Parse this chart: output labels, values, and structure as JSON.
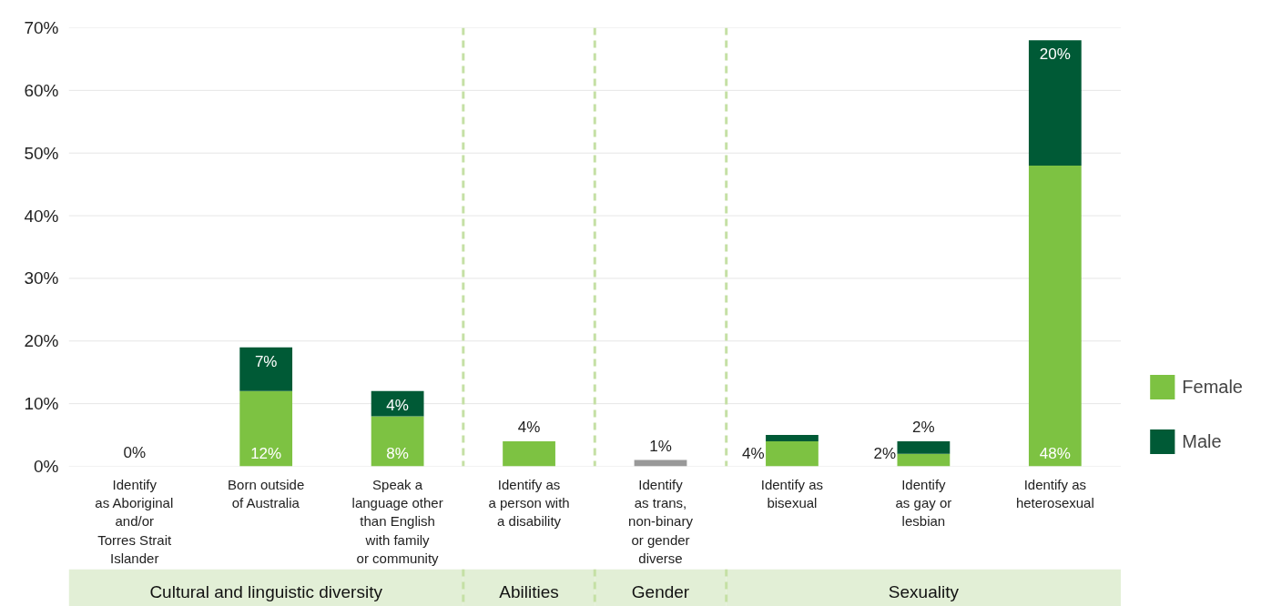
{
  "chart_data": {
    "type": "bar",
    "stacked": true,
    "categories": [
      "Identify\nas Aboriginal\nand/or\nTorres Strait\nIslander",
      "Born outside\nof Australia",
      "Speak a\nlanguage other\nthan English\nwith family\nor community",
      "Identify as\na person with\na disability",
      "Identify\nas trans,\nnon-binary\nor gender\ndiverse",
      "Identify as\nbisexual",
      "Identify\nas gay or\nlesbian",
      "Identify as\nheterosexual"
    ],
    "series": [
      {
        "name": "Female",
        "color": "#7dc242",
        "values": [
          0,
          12,
          8,
          4,
          null,
          4,
          2,
          48
        ],
        "value_labels": [
          "0%",
          "12%",
          "8%",
          "4%",
          null,
          "4%",
          "2%",
          "48%"
        ]
      },
      {
        "name": "Male",
        "color": "#005a36",
        "values": [
          0,
          7,
          4,
          0,
          null,
          1,
          2,
          20
        ],
        "value_labels": [
          null,
          "7%",
          "4%",
          null,
          null,
          null,
          "2%",
          "20%"
        ]
      },
      {
        "color": "#999999",
        "values": [
          null,
          null,
          null,
          null,
          1,
          null,
          null,
          null
        ],
        "value_labels": [
          null,
          null,
          null,
          null,
          "1%",
          null,
          null,
          null
        ]
      }
    ],
    "ylim": [
      0,
      70
    ],
    "yticks": [
      {
        "value": 0,
        "label": "0%"
      },
      {
        "value": 10,
        "label": "10%"
      },
      {
        "value": 20,
        "label": "20%"
      },
      {
        "value": 30,
        "label": "30%"
      },
      {
        "value": 40,
        "label": "40%"
      },
      {
        "value": 50,
        "label": "50%"
      },
      {
        "value": 60,
        "label": "60%"
      },
      {
        "value": 70,
        "label": "70%"
      }
    ],
    "grid": "y",
    "legend": "right",
    "annotations": [
      "Cultural and linguistic diversity",
      "Abilities",
      "Gender",
      "Sexuality"
    ]
  }
}
